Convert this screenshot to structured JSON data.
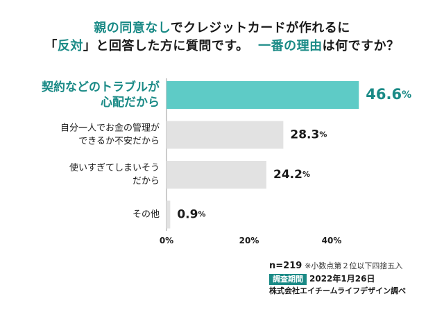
{
  "title": {
    "line1_a": "親の同意なし",
    "line1_b": "でクレジットカードが作れるに",
    "line2_a": "「",
    "line2_b": "反対",
    "line2_c": "」と回答した方に質問です。",
    "line2_d": "一番の理由",
    "line2_e": "は何ですか？"
  },
  "chart_data": {
    "type": "bar",
    "orientation": "horizontal",
    "categories": [
      [
        "契約などのトラブルが",
        "心配だから"
      ],
      [
        "自分一人でお金の管理が",
        "できるか不安だから"
      ],
      [
        "使いすぎてしまいそう",
        "だから"
      ],
      [
        "その他"
      ]
    ],
    "values": [
      46.6,
      28.3,
      24.2,
      0.9
    ],
    "value_labels": [
      "46.6",
      "28.3",
      "24.2",
      "0.9"
    ],
    "unit": "%",
    "highlight_index": 0,
    "xlim": [
      0,
      50
    ],
    "xticks": [
      0,
      20,
      40
    ],
    "xtick_labels": [
      "0%",
      "20%",
      "40%"
    ],
    "colors": {
      "highlight": "#5ecbc6",
      "highlight_text": "#1a8a86",
      "normal": "#e2e2e2",
      "axis": "#999999"
    }
  },
  "notes": {
    "n": "n=219",
    "rounding": "※小数点第２位以下四捨五入",
    "period_label": "調査期間",
    "period_value": "2022年1月26日",
    "company": "株式会社エイチームライフデザイン調べ"
  }
}
